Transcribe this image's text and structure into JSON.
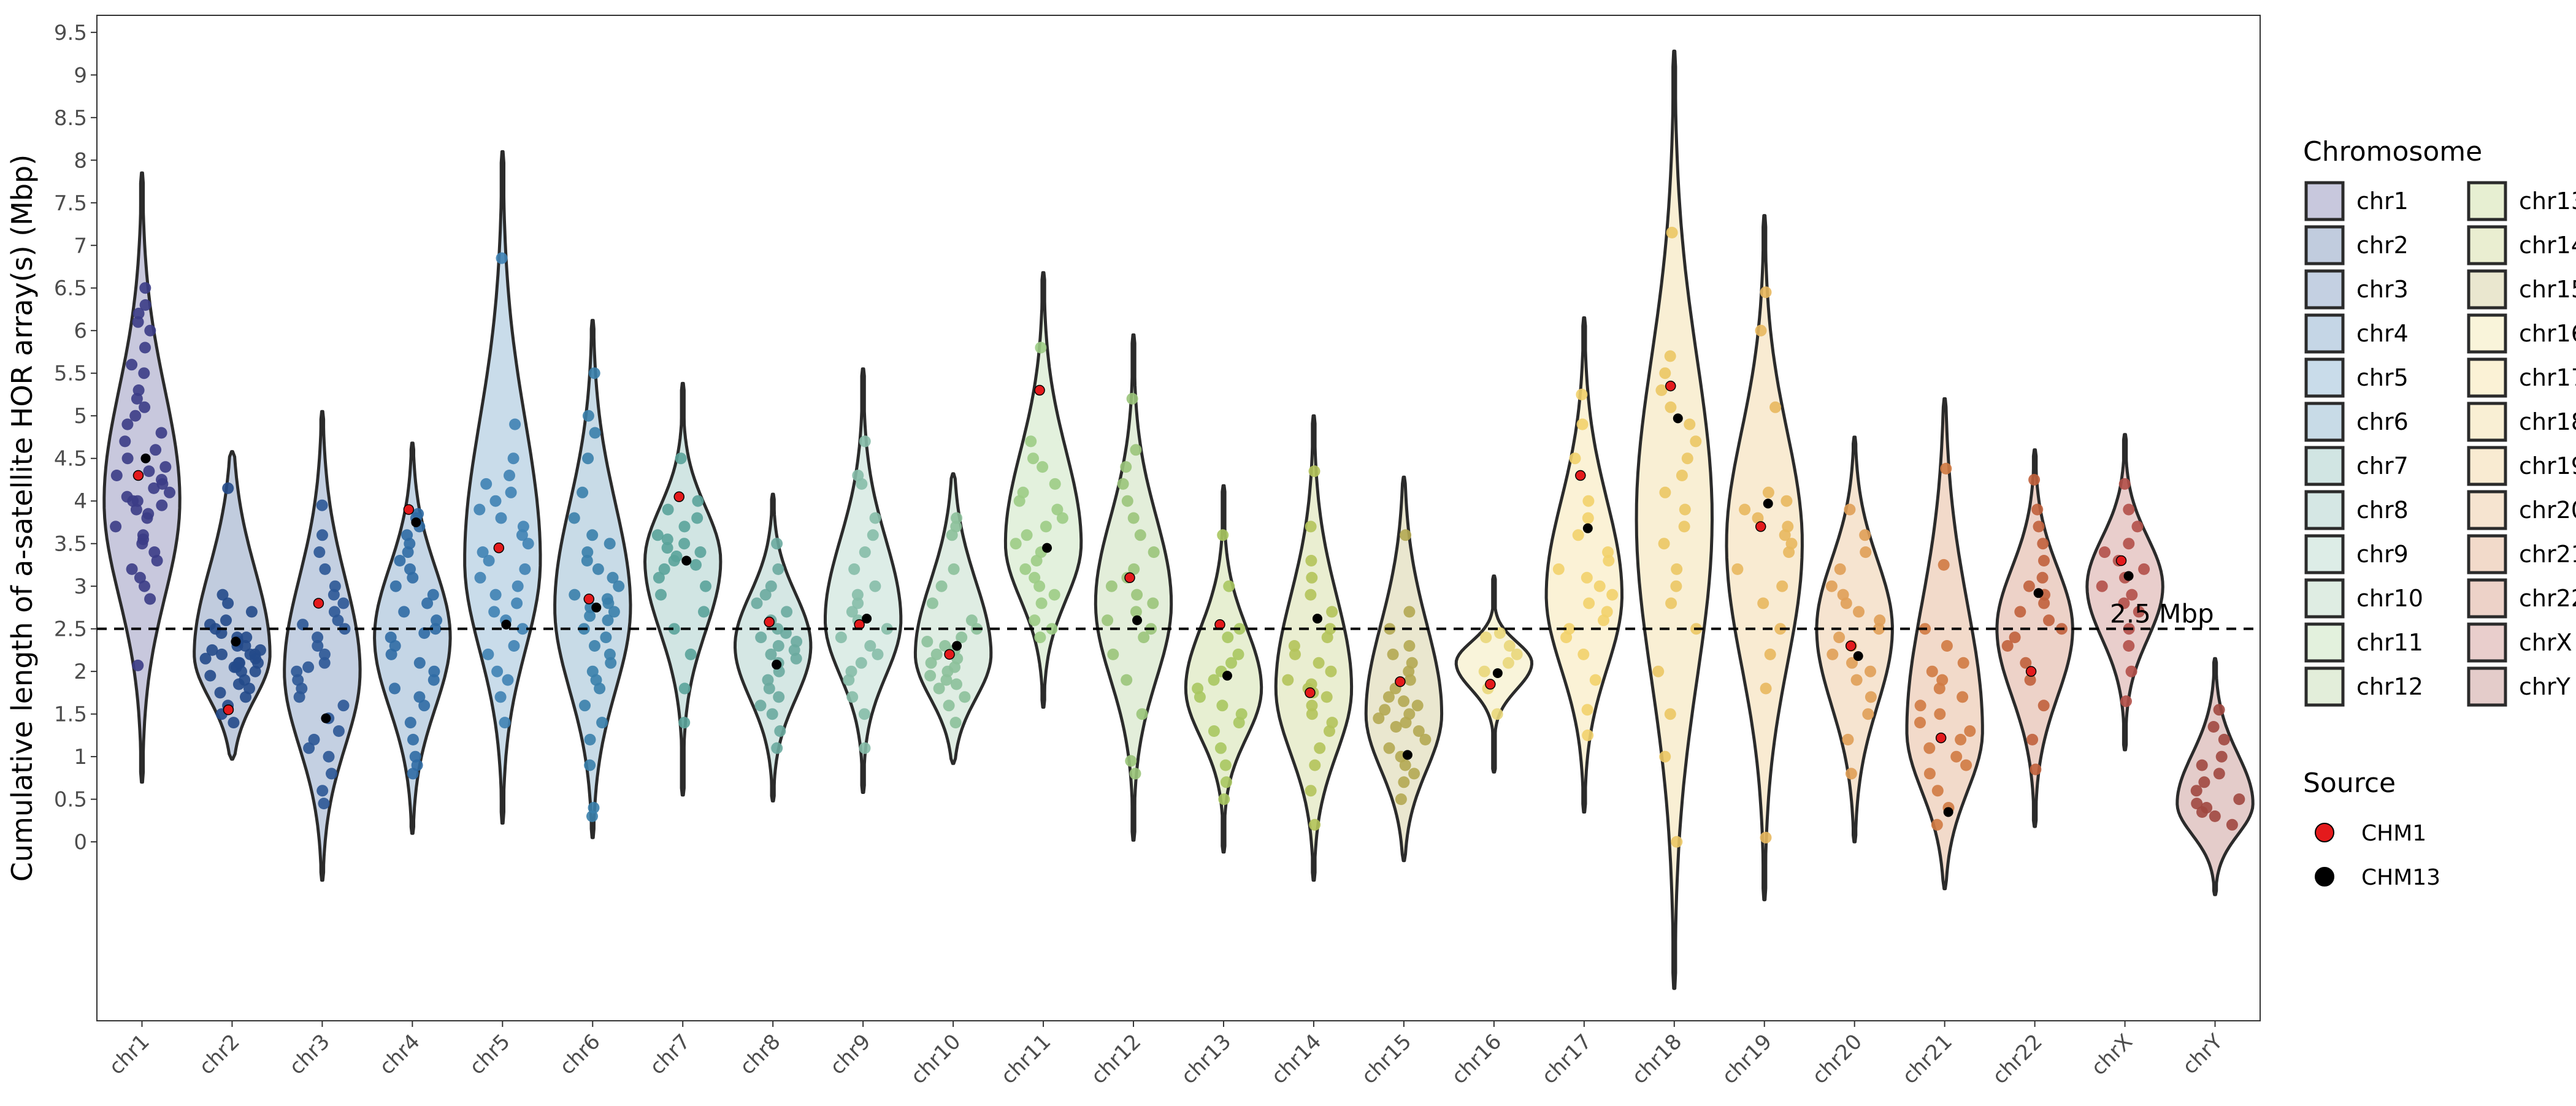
{
  "chart_data": {
    "type": "violin",
    "title": "",
    "xlabel": "",
    "ylabel": "Cumulative length of a-satellite HOR array(s) (Mbp)",
    "ylim": [
      -2.1,
      9.7
    ],
    "yticks": [
      0,
      0.5,
      1,
      1.5,
      2,
      2.5,
      3,
      3.5,
      4,
      4.5,
      5,
      5.5,
      6,
      6.5,
      7,
      7.5,
      8,
      8.5,
      9,
      9.5
    ],
    "grid": false,
    "reference_line": {
      "value": 2.5,
      "label": "2.5 Mbp",
      "style": "dashed"
    },
    "categories": [
      "chr1",
      "chr2",
      "chr3",
      "chr4",
      "chr5",
      "chr6",
      "chr7",
      "chr8",
      "chr9",
      "chr10",
      "chr11",
      "chr12",
      "chr13",
      "chr14",
      "chr15",
      "chr16",
      "chr17",
      "chr18",
      "chr19",
      "chr20",
      "chr21",
      "chr22",
      "chrX",
      "chrY"
    ],
    "colors": {
      "chr1": "#3b3c86",
      "chr2": "#234a8a",
      "chr3": "#2c5696",
      "chr4": "#2f6ba4",
      "chr5": "#3f82b4",
      "chr6": "#3a80ab",
      "chr7": "#5aa39a",
      "chr8": "#6aaa9e",
      "chr9": "#86bda9",
      "chr10": "#8cc09a",
      "chr11": "#9ccc85",
      "chr12": "#9ac47a",
      "chr13": "#a9c760",
      "chr14": "#b4c35a",
      "chr15": "#b4a852",
      "chr16": "#e9d77a",
      "chr17": "#f2d16b",
      "chr18": "#ebc664",
      "chr19": "#e8b85e",
      "chr20": "#e09e56",
      "chr21": "#d07a42",
      "chr22": "#c0603c",
      "chrX": "#b25049",
      "chrY": "#a04840"
    },
    "series": [
      {
        "name": "chr1",
        "min": 0.7,
        "max": 7.85,
        "median": 4.0,
        "chm1": 4.3,
        "chm13": 4.5,
        "spread": 0.34,
        "values": [
          2.07,
          2.85,
          3.0,
          3.1,
          3.2,
          3.3,
          3.4,
          3.5,
          3.55,
          3.6,
          3.7,
          3.8,
          3.85,
          3.9,
          3.95,
          4.0,
          4.0,
          4.05,
          4.1,
          4.15,
          4.2,
          4.25,
          4.3,
          4.35,
          4.4,
          4.5,
          4.6,
          4.7,
          4.8,
          4.9,
          5.0,
          5.1,
          5.2,
          5.3,
          5.5,
          5.6,
          5.8,
          6.0,
          6.1,
          6.2,
          6.3,
          6.5
        ]
      },
      {
        "name": "chr2",
        "min": 0.97,
        "max": 4.58,
        "median": 2.2,
        "chm1": 1.55,
        "chm13": 2.35,
        "spread": 0.42,
        "values": [
          1.4,
          1.5,
          1.6,
          1.7,
          1.75,
          1.8,
          1.85,
          1.9,
          1.95,
          2.0,
          2.0,
          2.05,
          2.05,
          2.1,
          2.1,
          2.1,
          2.15,
          2.15,
          2.2,
          2.2,
          2.2,
          2.25,
          2.25,
          2.3,
          2.3,
          2.35,
          2.4,
          2.4,
          2.45,
          2.5,
          2.55,
          2.6,
          2.7,
          2.8,
          2.9,
          4.15
        ]
      },
      {
        "name": "chr3",
        "min": -0.45,
        "max": 5.05,
        "median": 2.0,
        "chm1": 2.8,
        "chm13": 1.45,
        "spread": 0.36,
        "values": [
          0.45,
          0.6,
          0.8,
          1.0,
          1.1,
          1.2,
          1.3,
          1.45,
          1.6,
          1.7,
          1.8,
          1.9,
          2.0,
          2.05,
          2.1,
          2.2,
          2.3,
          2.4,
          2.5,
          2.55,
          2.6,
          2.7,
          2.8,
          2.9,
          3.0,
          3.2,
          3.4,
          3.6,
          3.95
        ]
      },
      {
        "name": "chr4",
        "min": 0.1,
        "max": 4.68,
        "median": 2.4,
        "chm1": 3.9,
        "chm13": 3.75,
        "spread": 0.36,
        "values": [
          0.8,
          0.9,
          1.0,
          1.2,
          1.4,
          1.6,
          1.7,
          1.8,
          1.9,
          2.0,
          2.1,
          2.2,
          2.3,
          2.4,
          2.45,
          2.5,
          2.6,
          2.7,
          2.8,
          2.9,
          3.0,
          3.1,
          3.2,
          3.3,
          3.4,
          3.5,
          3.6,
          3.7,
          3.8,
          3.85
        ]
      },
      {
        "name": "chr5",
        "min": 0.22,
        "max": 8.1,
        "median": 3.3,
        "chm1": 3.45,
        "chm13": 2.55,
        "spread": 0.34,
        "values": [
          1.4,
          1.7,
          1.9,
          2.0,
          2.2,
          2.3,
          2.5,
          2.6,
          2.7,
          2.8,
          2.9,
          3.0,
          3.1,
          3.2,
          3.3,
          3.4,
          3.5,
          3.6,
          3.7,
          3.8,
          3.9,
          4.0,
          4.1,
          4.2,
          4.3,
          4.5,
          4.9,
          6.85
        ]
      },
      {
        "name": "chr6",
        "min": 0.05,
        "max": 6.12,
        "median": 2.75,
        "chm1": 2.85,
        "chm13": 2.75,
        "spread": 0.36,
        "values": [
          0.3,
          0.4,
          0.9,
          1.2,
          1.4,
          1.6,
          1.8,
          1.9,
          2.0,
          2.1,
          2.2,
          2.3,
          2.4,
          2.5,
          2.6,
          2.65,
          2.7,
          2.75,
          2.8,
          2.85,
          2.9,
          3.0,
          3.1,
          3.2,
          3.3,
          3.4,
          3.5,
          3.6,
          3.8,
          4.1,
          4.5,
          4.8,
          5.0,
          5.5
        ]
      },
      {
        "name": "chr7",
        "min": 0.55,
        "max": 5.38,
        "median": 3.3,
        "chm1": 4.05,
        "chm13": 3.3,
        "spread": 0.3,
        "values": [
          1.4,
          1.8,
          2.2,
          2.5,
          2.7,
          2.9,
          3.0,
          3.1,
          3.2,
          3.25,
          3.3,
          3.35,
          3.4,
          3.45,
          3.5,
          3.55,
          3.6,
          3.7,
          3.8,
          3.9,
          4.0,
          4.5
        ]
      },
      {
        "name": "chr8",
        "min": 0.48,
        "max": 4.08,
        "median": 2.3,
        "chm1": 2.58,
        "chm13": 2.08,
        "spread": 0.34,
        "values": [
          1.1,
          1.3,
          1.5,
          1.6,
          1.7,
          1.8,
          1.9,
          2.0,
          2.1,
          2.15,
          2.2,
          2.25,
          2.3,
          2.35,
          2.4,
          2.45,
          2.5,
          2.6,
          2.7,
          2.8,
          2.9,
          3.0,
          3.2,
          3.5
        ]
      },
      {
        "name": "chr9",
        "min": 0.58,
        "max": 5.55,
        "median": 2.6,
        "chm1": 2.55,
        "chm13": 2.62,
        "spread": 0.32,
        "values": [
          1.1,
          1.5,
          1.7,
          1.9,
          2.0,
          2.1,
          2.2,
          2.3,
          2.4,
          2.5,
          2.6,
          2.7,
          2.8,
          2.9,
          3.0,
          3.2,
          3.4,
          3.6,
          3.8,
          4.2,
          4.3,
          4.7
        ]
      },
      {
        "name": "chr10",
        "min": 0.92,
        "max": 4.32,
        "median": 2.2,
        "chm1": 2.2,
        "chm13": 2.3,
        "spread": 0.4,
        "values": [
          1.4,
          1.6,
          1.7,
          1.8,
          1.85,
          1.9,
          1.95,
          2.0,
          2.05,
          2.1,
          2.15,
          2.2,
          2.25,
          2.3,
          2.35,
          2.4,
          2.5,
          2.6,
          2.8,
          3.0,
          3.2,
          3.6,
          3.7,
          3.8
        ]
      },
      {
        "name": "chr11",
        "min": 1.58,
        "max": 6.68,
        "median": 3.5,
        "chm1": 5.3,
        "chm13": 3.45,
        "spread": 0.34,
        "values": [
          2.4,
          2.5,
          2.6,
          2.8,
          2.9,
          3.0,
          3.1,
          3.2,
          3.3,
          3.4,
          3.5,
          3.6,
          3.7,
          3.8,
          3.9,
          4.0,
          4.1,
          4.2,
          4.4,
          4.5,
          4.7,
          5.8
        ]
      },
      {
        "name": "chr12",
        "min": 0.02,
        "max": 5.95,
        "median": 2.8,
        "chm1": 3.1,
        "chm13": 2.6,
        "spread": 0.32,
        "values": [
          0.8,
          0.95,
          1.5,
          1.9,
          2.2,
          2.4,
          2.5,
          2.6,
          2.7,
          2.8,
          2.9,
          3.0,
          3.1,
          3.2,
          3.4,
          3.6,
          3.8,
          4.0,
          4.2,
          4.4,
          4.6,
          5.2
        ]
      },
      {
        "name": "chr13",
        "min": -0.12,
        "max": 4.18,
        "median": 1.8,
        "chm1": 2.55,
        "chm13": 1.95,
        "spread": 0.3,
        "values": [
          0.5,
          0.7,
          0.9,
          1.1,
          1.3,
          1.4,
          1.5,
          1.6,
          1.7,
          1.8,
          1.9,
          2.0,
          2.1,
          2.2,
          2.4,
          2.5,
          3.0,
          3.6
        ]
      },
      {
        "name": "chr14",
        "min": -0.45,
        "max": 5.0,
        "median": 1.8,
        "chm1": 1.75,
        "chm13": 2.62,
        "spread": 0.34,
        "values": [
          0.2,
          0.6,
          0.9,
          1.1,
          1.3,
          1.4,
          1.5,
          1.6,
          1.7,
          1.75,
          1.8,
          1.85,
          1.9,
          2.0,
          2.1,
          2.2,
          2.3,
          2.4,
          2.5,
          2.7,
          2.9,
          3.1,
          3.3,
          3.7,
          4.35
        ]
      },
      {
        "name": "chr15",
        "min": -0.22,
        "max": 4.28,
        "median": 1.5,
        "chm1": 1.88,
        "chm13": 1.02,
        "spread": 0.38,
        "values": [
          0.5,
          0.7,
          0.8,
          0.9,
          1.0,
          1.1,
          1.2,
          1.3,
          1.35,
          1.4,
          1.45,
          1.5,
          1.55,
          1.6,
          1.65,
          1.7,
          1.8,
          1.9,
          2.0,
          2.1,
          2.2,
          2.3,
          2.5,
          2.7,
          3.6
        ]
      },
      {
        "name": "chr16",
        "min": 0.82,
        "max": 3.12,
        "median": 2.1,
        "chm1": 1.85,
        "chm13": 1.98,
        "spread": 0.24,
        "values": [
          1.5,
          1.8,
          2.0,
          2.1,
          2.2,
          2.3,
          2.4,
          2.45
        ]
      },
      {
        "name": "chr17",
        "min": 0.35,
        "max": 6.15,
        "median": 2.9,
        "chm1": 4.3,
        "chm13": 3.68,
        "spread": 0.34,
        "values": [
          1.25,
          1.55,
          1.9,
          2.2,
          2.4,
          2.5,
          2.6,
          2.7,
          2.8,
          2.9,
          3.0,
          3.1,
          3.2,
          3.3,
          3.4,
          3.6,
          3.8,
          4.0,
          4.5,
          4.9,
          5.25
        ]
      },
      {
        "name": "chr18",
        "min": -1.72,
        "max": 9.28,
        "median": 3.8,
        "chm1": 5.35,
        "chm13": 4.97,
        "spread": 0.34,
        "values": [
          0.0,
          1.0,
          1.5,
          2.0,
          2.5,
          2.8,
          3.0,
          3.2,
          3.5,
          3.7,
          3.9,
          4.1,
          4.3,
          4.5,
          4.7,
          4.9,
          5.1,
          5.3,
          5.5,
          5.7,
          7.15
        ]
      },
      {
        "name": "chr19",
        "min": -0.68,
        "max": 7.35,
        "median": 3.5,
        "chm1": 3.7,
        "chm13": 3.97,
        "spread": 0.34,
        "values": [
          0.05,
          1.8,
          2.2,
          2.5,
          2.8,
          3.0,
          3.2,
          3.4,
          3.5,
          3.6,
          3.7,
          3.8,
          3.9,
          4.0,
          4.1,
          5.1,
          6.0,
          6.45
        ]
      },
      {
        "name": "chr20",
        "min": 0.0,
        "max": 4.75,
        "median": 2.5,
        "chm1": 2.3,
        "chm13": 2.18,
        "spread": 0.36,
        "values": [
          0.8,
          1.2,
          1.5,
          1.7,
          1.9,
          2.0,
          2.1,
          2.2,
          2.3,
          2.4,
          2.5,
          2.6,
          2.7,
          2.8,
          2.9,
          3.0,
          3.2,
          3.4,
          3.6,
          3.9
        ]
      },
      {
        "name": "chr21",
        "min": -0.55,
        "max": 5.2,
        "median": 1.3,
        "chm1": 1.22,
        "chm13": 0.35,
        "spread": 0.38,
        "values": [
          0.2,
          0.4,
          0.6,
          0.8,
          0.9,
          1.0,
          1.1,
          1.2,
          1.3,
          1.4,
          1.5,
          1.6,
          1.7,
          1.8,
          1.9,
          2.0,
          2.1,
          2.3,
          2.5,
          3.25,
          4.38
        ]
      },
      {
        "name": "chr22",
        "min": 0.18,
        "max": 4.6,
        "median": 2.5,
        "chm1": 2.0,
        "chm13": 2.92,
        "spread": 0.34,
        "values": [
          0.85,
          1.2,
          1.6,
          1.9,
          2.1,
          2.3,
          2.4,
          2.5,
          2.6,
          2.7,
          2.8,
          2.9,
          3.0,
          3.1,
          3.3,
          3.5,
          3.7,
          3.9,
          4.25
        ]
      },
      {
        "name": "chrX",
        "min": 1.08,
        "max": 4.78,
        "median": 3.0,
        "chm1": 3.3,
        "chm13": 3.12,
        "spread": 0.32,
        "values": [
          1.65,
          2.0,
          2.3,
          2.5,
          2.7,
          2.8,
          2.9,
          3.0,
          3.1,
          3.2,
          3.3,
          3.4,
          3.5,
          3.7,
          3.9,
          4.2
        ]
      },
      {
        "name": "chrY",
        "min": -0.62,
        "max": 2.15,
        "median": 0.45,
        "chm1": null,
        "chm13": null,
        "spread": 0.34,
        "values": [
          0.2,
          0.3,
          0.35,
          0.4,
          0.45,
          0.5,
          0.6,
          0.7,
          0.8,
          0.9,
          1.0,
          1.2,
          1.35,
          1.55
        ]
      }
    ],
    "legend": {
      "placement": "right",
      "chromosome_title": "Chromosome",
      "source_title": "Source",
      "sources": [
        {
          "name": "CHM1",
          "color": "#e41a1c"
        },
        {
          "name": "CHM13",
          "color": "#000000"
        }
      ]
    }
  }
}
